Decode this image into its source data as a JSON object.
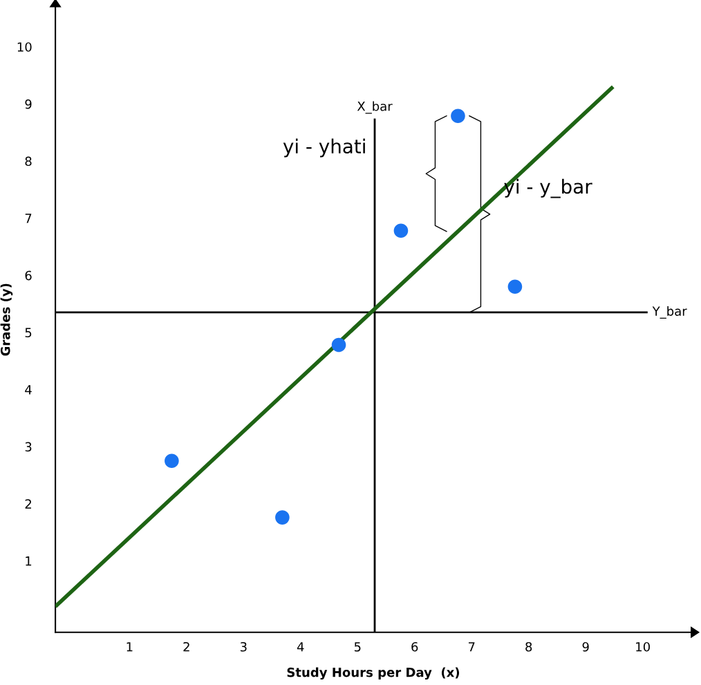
{
  "chart_data": {
    "type": "scatter",
    "xlabel": "Study Hours per Day  (x)",
    "ylabel": "Grades (y)",
    "xlim": [
      -0.3,
      10.85
    ],
    "ylim": [
      -0.25,
      10.7
    ],
    "xticks": [
      1,
      2,
      3,
      4,
      5,
      6,
      7,
      8,
      9,
      10
    ],
    "yticks": [
      1,
      2,
      3,
      4,
      5,
      6,
      7,
      8,
      9,
      10
    ],
    "grid": false,
    "marker": "circle",
    "series": [
      {
        "color": "#1a73f0",
        "x": [
          1.74,
          3.68,
          4.67,
          5.76,
          6.76,
          7.76
        ],
        "values": [
          2.75,
          1.76,
          4.78,
          6.78,
          8.79,
          5.8
        ]
      },
      {
        "type": "line",
        "color": "#1e6414",
        "line_style": "solid",
        "marker": "none",
        "x": [
          -0.3,
          9.48
        ],
        "values": [
          0.2,
          9.3
        ]
      }
    ],
    "ref_lines": [
      {
        "axis": "x",
        "value": 5.3,
        "label": "X_bar",
        "color": "#000000"
      },
      {
        "axis": "y",
        "value": 5.35,
        "label": "Y_bar",
        "color": "#000000"
      }
    ],
    "annotations": [
      "yi - yhati",
      "yi - y_bar"
    ]
  }
}
